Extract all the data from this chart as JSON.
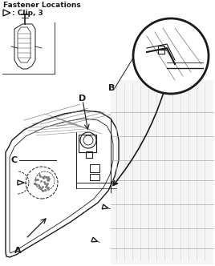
{
  "title": "Fastener Locations",
  "clip_symbol": ": Clip, 3",
  "bg_color": "#ffffff",
  "label_A": "A",
  "label_B": "B",
  "label_C": "C",
  "label_D": "D",
  "fig_width": 2.68,
  "fig_height": 3.32,
  "dpi": 100,
  "line_color": "#1a1a1a",
  "gray_color": "#888888",
  "light_gray": "#cccccc"
}
